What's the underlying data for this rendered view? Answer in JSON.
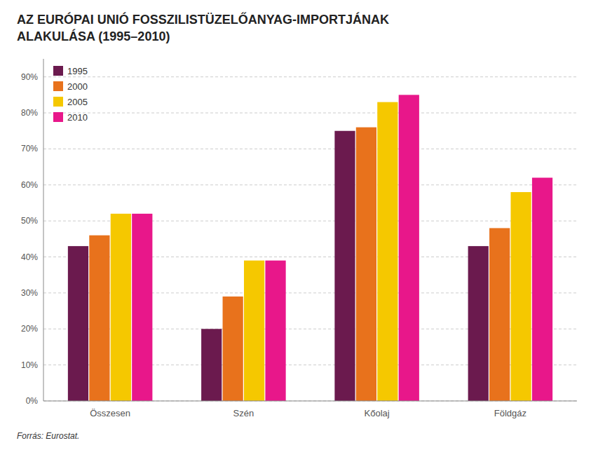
{
  "chart_data": {
    "type": "bar",
    "title": "AZ EURÓPAI UNIÓ FOSSZILISTÜZELŐANYAG-IMPORTJÁNAK\nALAKULÁSA (1995–2010)",
    "source": "Forrás: Eurostat.",
    "categories": [
      "Összesen",
      "Szén",
      "Kőolaj",
      "Földgáz"
    ],
    "series": [
      {
        "name": "1995",
        "color": "#6b1a4e",
        "values": [
          43,
          20,
          75,
          43
        ]
      },
      {
        "name": "2000",
        "color": "#e8721c",
        "values": [
          46,
          29,
          76,
          48
        ]
      },
      {
        "name": "2005",
        "color": "#f5c800",
        "values": [
          52,
          39,
          83,
          58
        ]
      },
      {
        "name": "2010",
        "color": "#e8178a",
        "values": [
          52,
          39,
          85,
          62
        ]
      }
    ],
    "ylim": [
      0,
      95
    ],
    "yticks": [
      {
        "value": 0,
        "label": "0%"
      },
      {
        "value": 10,
        "label": "10%"
      },
      {
        "value": 20,
        "label": "20%"
      },
      {
        "value": 30,
        "label": "30%"
      },
      {
        "value": 40,
        "label": "40%"
      },
      {
        "value": 50,
        "label": "50%"
      },
      {
        "value": 60,
        "label": "60%"
      },
      {
        "value": 70,
        "label": "70%"
      },
      {
        "value": 80,
        "label": "80%"
      },
      {
        "value": 90,
        "label": "90%"
      }
    ],
    "grid": true,
    "legend": "upper left"
  }
}
